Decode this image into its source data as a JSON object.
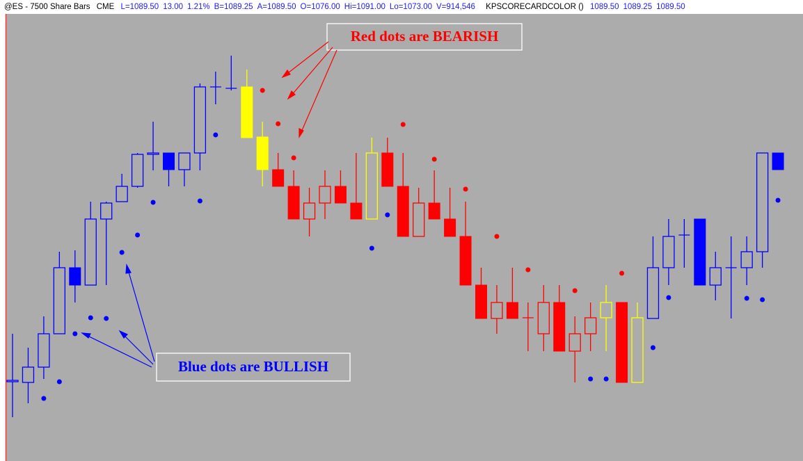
{
  "header": {
    "symbol": "@ES - 7500 Share Bars",
    "exchange": "CME",
    "quote": [
      "L=1089.50",
      "13.00",
      "1.21%",
      "B=1089.25",
      "A=1089.50",
      "O=1076.00",
      "Hi=1091.00",
      "Lo=1073.00",
      "V=914,546"
    ],
    "indicator": "KPSCORECARDCOLOR ()",
    "indicator_values": [
      "1089.50",
      "1089.25",
      "1089.50"
    ]
  },
  "chart_data": {
    "type": "candlestick",
    "ylim": [
      1045.2,
      1109.5
    ],
    "open": [
      1056.6,
      1056.5,
      1058.7,
      1063.5,
      1073,
      1070.5,
      1080,
      1082.5,
      1084.7,
      1089.3,
      1089.5,
      1087.1,
      1089.5,
      1099,
      1098.8,
      1099,
      1091.8,
      1087.1,
      1084.7,
      1080,
      1082.3,
      1084.7,
      1082.3,
      1080,
      1089.5,
      1084.7,
      1077.5,
      1082.3,
      1080,
      1077.5,
      1070.5,
      1065.7,
      1068,
      1065.8,
      1063.5,
      1068,
      1061,
      1063.5,
      1065.8,
      1068,
      1056.5,
      1065.7,
      1073,
      1077.7,
      1080,
      1070.5,
      1073,
      1073,
      1075.3,
      1089.5
    ],
    "high": [
      1063.5,
      1061.5,
      1066,
      1075.3,
      1075.5,
      1082.5,
      1082.5,
      1086.5,
      1089.5,
      1094,
      1089.5,
      1089.5,
      1099.5,
      1101.2,
      1103.5,
      1101.5,
      1094,
      1089.5,
      1087,
      1084.5,
      1087,
      1087,
      1089.5,
      1091.7,
      1091.7,
      1089.5,
      1084.5,
      1087,
      1084.5,
      1082.5,
      1073,
      1070.5,
      1073,
      1068,
      1070.5,
      1070.5,
      1066,
      1068,
      1070.5,
      1068,
      1068,
      1077.5,
      1080,
      1080,
      1080,
      1075.3,
      1077.5,
      1077.5,
      1089.5,
      1089.5
    ],
    "low": [
      1051.5,
      1053.5,
      1057,
      1063.5,
      1068,
      1070.5,
      1070.5,
      1082.5,
      1084.5,
      1087,
      1084.7,
      1084.7,
      1087,
      1096.5,
      1098.5,
      1091.7,
      1084.7,
      1084.7,
      1080,
      1077.5,
      1080,
      1082.3,
      1080,
      1080,
      1084.7,
      1077.5,
      1077.5,
      1080,
      1077.5,
      1070.5,
      1065.7,
      1063.5,
      1065.7,
      1061,
      1061,
      1061,
      1056.5,
      1061,
      1061,
      1056.5,
      1056.5,
      1065.7,
      1070.5,
      1073,
      1070.5,
      1068.3,
      1065.7,
      1070.5,
      1073,
      1087.1
    ],
    "close": [
      1056.8,
      1058.7,
      1063.5,
      1073,
      1070.5,
      1080,
      1082.3,
      1084.7,
      1089.3,
      1089.5,
      1087.1,
      1089.5,
      1099,
      1099,
      1098.8,
      1091.7,
      1087.1,
      1084.7,
      1080,
      1082.3,
      1084.7,
      1082.3,
      1080,
      1089.5,
      1084.7,
      1077.5,
      1082.3,
      1080,
      1077.5,
      1070.5,
      1065.7,
      1068,
      1065.7,
      1065.8,
      1068,
      1061,
      1063.5,
      1065.8,
      1068,
      1056.5,
      1065.8,
      1073,
      1077.5,
      1077.7,
      1070.5,
      1073,
      1073,
      1075.3,
      1089.5,
      1087.1
    ],
    "colors": [
      "#0000ff",
      "#0000ff",
      "#0000ff",
      "#0000ff",
      "#0000ff",
      "#0000ff",
      "#0000ff",
      "#0000ff",
      "#0000ff",
      "#0000ff",
      "#0000ff",
      "#0000ff",
      "#0000ff",
      "#0000ff",
      "#0000ff",
      "#ffff00",
      "#ffff00",
      "#ff0000",
      "#ff0000",
      "#ff0000",
      "#ff0000",
      "#ff0000",
      "#ff0000",
      "#ffff00",
      "#ff0000",
      "#ff0000",
      "#ff0000",
      "#ff0000",
      "#ff0000",
      "#ff0000",
      "#ff0000",
      "#ff0000",
      "#ff0000",
      "#ff0000",
      "#ff0000",
      "#ff0000",
      "#ff0000",
      "#ff0000",
      "#ffff00",
      "#ff0000",
      "#ffff00",
      "#0000ff",
      "#0000ff",
      "#0000ff",
      "#0000ff",
      "#0000ff",
      "#0000ff",
      "#0000ff",
      "#0000ff",
      "#0000ff"
    ],
    "dots": [
      {
        "color": "#0000ff",
        "values": [
          null,
          null,
          1054.2,
          1056.6,
          1063.5,
          1065.8,
          1065.7,
          1075.2,
          1077.7,
          1082.4,
          null,
          null,
          1082.6,
          1092.1,
          null,
          null,
          null,
          null,
          null,
          null,
          null,
          null,
          null,
          1075.8,
          1080.6,
          null,
          null,
          null,
          null,
          null,
          null,
          null,
          null,
          null,
          null,
          null,
          null,
          1057,
          1057,
          null,
          null,
          1061.5,
          1068.7,
          null,
          null,
          null,
          null,
          1068.6,
          1068.4,
          1082.7
        ]
      },
      {
        "color": "#ff0000",
        "values": [
          null,
          null,
          null,
          null,
          null,
          null,
          null,
          null,
          null,
          null,
          null,
          null,
          null,
          null,
          null,
          null,
          1098.5,
          1093.7,
          1088.8,
          null,
          null,
          null,
          null,
          null,
          null,
          1093.6,
          null,
          1088.6,
          null,
          1084.3,
          null,
          1077.5,
          null,
          1072.7,
          null,
          null,
          1069.7,
          null,
          null,
          1072.2,
          null,
          null,
          null,
          null,
          null,
          null,
          null,
          null,
          null,
          null
        ]
      }
    ],
    "annotations": [
      "Red dots are BEARISH",
      "Blue dots are BULLISH"
    ]
  }
}
